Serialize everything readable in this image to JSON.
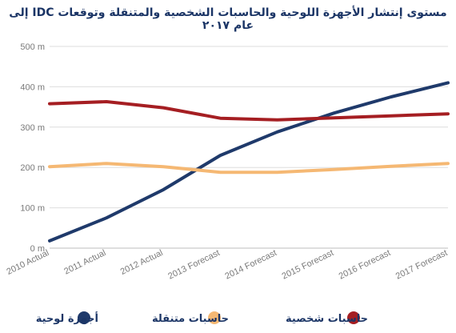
{
  "chart_data": {
    "type": "line",
    "title": "مستوى إنتشار الأجهزة اللوحية والحاسبات الشخصية والمتنقلة وتوقعات IDC إلى عام ٢٠١٧",
    "categories": [
      "2010 Actual",
      "2011 Actual",
      "2012 Actual",
      "2013 Forecast",
      "2014 Forecast",
      "2015 Forecast",
      "2016 Forecast",
      "2017 Forecast"
    ],
    "yticks": [
      "0 m",
      "100 m",
      "200 m",
      "300 m",
      "400 m",
      "500 m"
    ],
    "ylim": [
      0,
      500
    ],
    "grid": true,
    "legend_position": "bottom",
    "series": [
      {
        "name": "أجهزة لوحية",
        "color": "#1f3a6b",
        "values": [
          18,
          75,
          145,
          230,
          288,
          335,
          375,
          410
        ]
      },
      {
        "name": "حاسبات متنقلة",
        "color": "#f5b873",
        "values": [
          202,
          210,
          202,
          188,
          188,
          195,
          203,
          210
        ]
      },
      {
        "name": "حاسبات شخصية",
        "color": "#a51e22",
        "values": [
          358,
          363,
          348,
          322,
          318,
          323,
          328,
          333
        ]
      }
    ]
  }
}
